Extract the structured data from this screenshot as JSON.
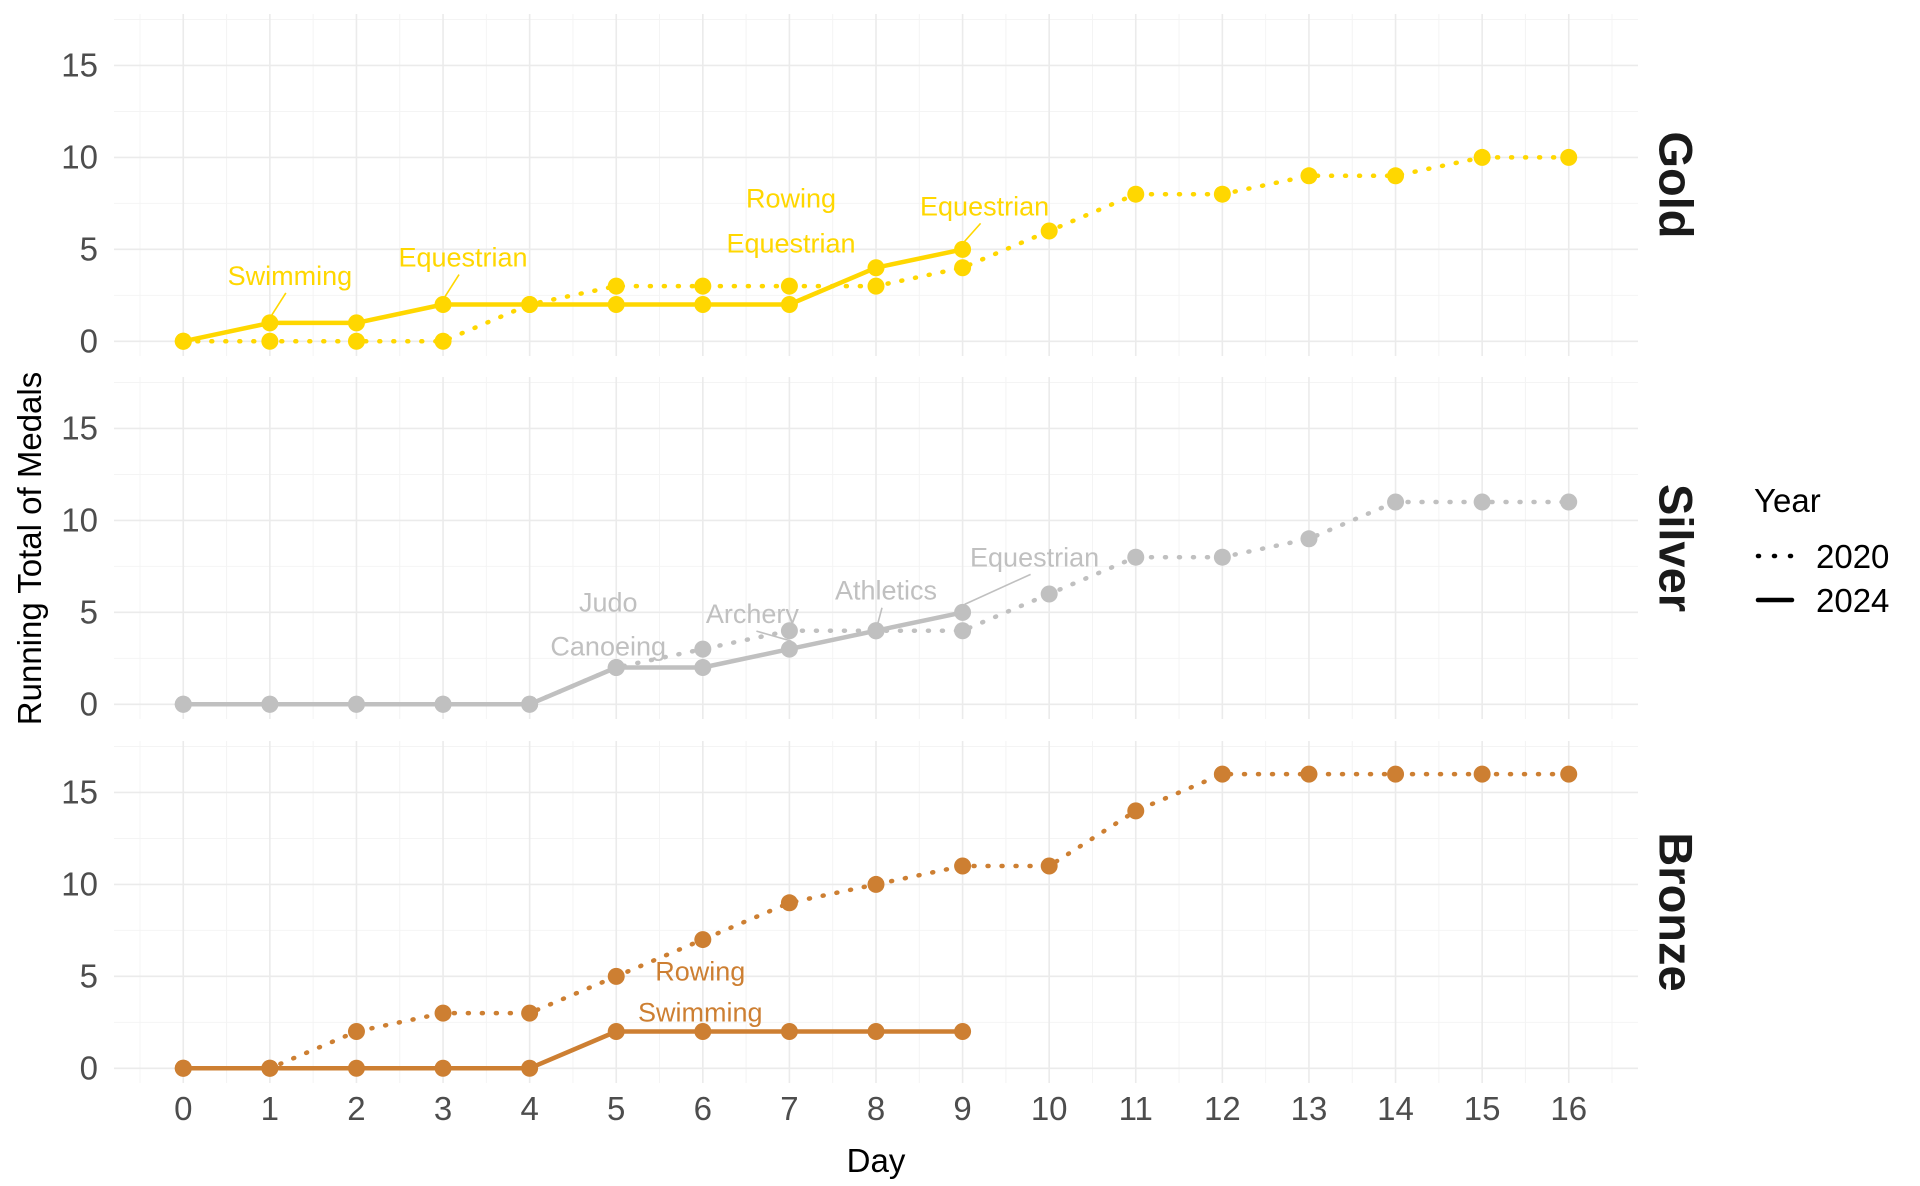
{
  "chart_data": {
    "type": "line",
    "xlabel": "Day",
    "ylabel": "Running Total of Medals",
    "x_ticks": [
      0,
      1,
      2,
      3,
      4,
      5,
      6,
      7,
      8,
      9,
      10,
      11,
      12,
      13,
      14,
      15,
      16
    ],
    "y_ticks": [
      0,
      5,
      10,
      15
    ],
    "xlim": [
      -0.8,
      16.8
    ],
    "ylim": [
      -0.8,
      17.8
    ],
    "legend": {
      "title": "Year",
      "position": "right",
      "entries": [
        {
          "label": "2020",
          "linetype": "dotted"
        },
        {
          "label": "2024",
          "linetype": "solid"
        }
      ]
    },
    "panels": [
      {
        "label": "Gold",
        "color": "#FFD700",
        "series": [
          {
            "year": "2020",
            "linetype": "dotted",
            "x": [
              0,
              1,
              2,
              3,
              4,
              5,
              6,
              7,
              8,
              9,
              10,
              11,
              12,
              13,
              14,
              15,
              16
            ],
            "y": [
              0,
              0,
              0,
              0,
              2,
              3,
              3,
              3,
              3,
              4,
              6,
              8,
              8,
              9,
              9,
              10,
              10
            ]
          },
          {
            "year": "2024",
            "linetype": "solid",
            "x": [
              0,
              1,
              2,
              3,
              4,
              5,
              6,
              7,
              8,
              9
            ],
            "y": [
              0,
              1,
              1,
              2,
              2,
              2,
              2,
              2,
              4,
              5
            ]
          }
        ],
        "annotations": [
          {
            "text": "Swimming",
            "x": 1,
            "y": 1
          },
          {
            "text": "Equestrian",
            "x": 3,
            "y": 2
          },
          {
            "text": "Rowing",
            "x": 8,
            "y": 4
          },
          {
            "text": "Equestrian",
            "x": 8,
            "y": 4
          },
          {
            "text": "Equestrian",
            "x": 9,
            "y": 5
          }
        ]
      },
      {
        "label": "Silver",
        "color": "#C0C0C0",
        "series": [
          {
            "year": "2020",
            "linetype": "dotted",
            "x": [
              0,
              1,
              2,
              3,
              4,
              5,
              6,
              7,
              8,
              9,
              10,
              11,
              12,
              13,
              14,
              15,
              16
            ],
            "y": [
              0,
              0,
              0,
              0,
              0,
              2,
              3,
              4,
              4,
              4,
              6,
              8,
              8,
              9,
              11,
              11,
              11
            ]
          },
          {
            "year": "2024",
            "linetype": "solid",
            "x": [
              0,
              1,
              2,
              3,
              4,
              5,
              6,
              7,
              8,
              9
            ],
            "y": [
              0,
              0,
              0,
              0,
              0,
              2,
              2,
              3,
              4,
              5
            ]
          }
        ],
        "annotations": [
          {
            "text": "Judo",
            "x": 5,
            "y": 2
          },
          {
            "text": "Canoeing",
            "x": 5,
            "y": 2
          },
          {
            "text": "Archery",
            "x": 7,
            "y": 3
          },
          {
            "text": "Athletics",
            "x": 8,
            "y": 4
          },
          {
            "text": "Equestrian",
            "x": 9,
            "y": 5
          }
        ]
      },
      {
        "label": "Bronze",
        "color": "#CD7F32",
        "series": [
          {
            "year": "2020",
            "linetype": "dotted",
            "x": [
              0,
              1,
              2,
              3,
              4,
              5,
              6,
              7,
              8,
              9,
              10,
              11,
              12,
              13,
              14,
              15,
              16
            ],
            "y": [
              0,
              0,
              2,
              3,
              3,
              5,
              7,
              9,
              10,
              11,
              11,
              14,
              16,
              16,
              16,
              16,
              16
            ]
          },
          {
            "year": "2024",
            "linetype": "solid",
            "x": [
              0,
              1,
              2,
              3,
              4,
              5,
              6,
              7,
              8,
              9
            ],
            "y": [
              0,
              0,
              0,
              0,
              0,
              2,
              2,
              2,
              2,
              2
            ]
          }
        ],
        "annotations": [
          {
            "text": "Rowing",
            "x": 5,
            "y": 2
          },
          {
            "text": "Swimming",
            "x": 5,
            "y": 2
          }
        ]
      }
    ]
  }
}
